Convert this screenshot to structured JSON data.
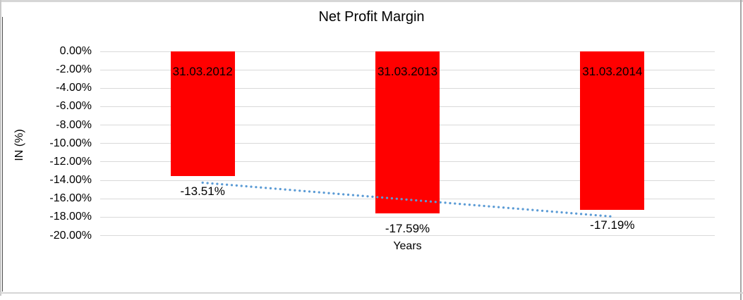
{
  "window": {
    "background": "#ffffff",
    "border_top_color": "#d6d6d6",
    "border_right_color": "#a6a6a6",
    "chart_border_color": "#4a4a4a"
  },
  "chart_data": {
    "type": "bar",
    "title": "Net Profit Margin",
    "xlabel": "Years",
    "ylabel": "IN (%)",
    "categories": [
      "31.03.2012",
      "31.03.2013",
      "31.03.2014"
    ],
    "values": [
      -13.51,
      -17.59,
      -17.19
    ],
    "data_labels": [
      "-13.51%",
      "-17.59%",
      "-17.19%"
    ],
    "ylim": [
      -20,
      0
    ],
    "ytick_step": 2,
    "ytick_labels": [
      "0.00%",
      "-2.00%",
      "-4.00%",
      "-6.00%",
      "-8.00%",
      "-10.00%",
      "-12.00%",
      "-14.00%",
      "-16.00%",
      "-18.00%",
      "-20.00%"
    ],
    "grid": true,
    "legend": "none",
    "bar_color": "#ff0000",
    "gridline_color": "#d9d9d9",
    "text_color": "#000000",
    "trendline": {
      "type": "linear",
      "style": "dotted",
      "color": "#5b9bd5",
      "endpoint_values": [
        -14.26,
        -17.94
      ]
    }
  }
}
